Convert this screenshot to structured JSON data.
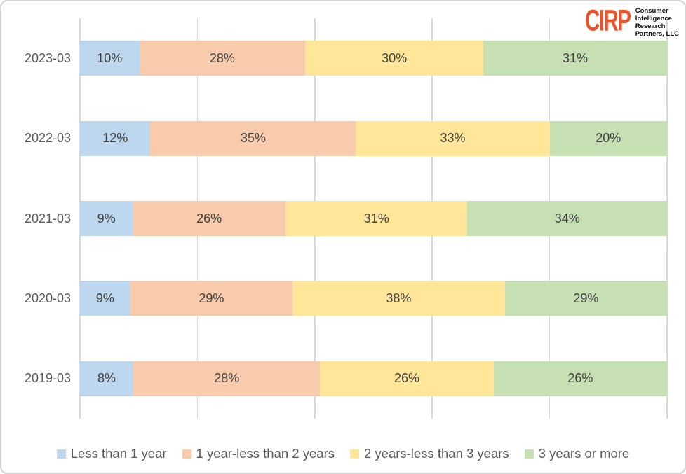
{
  "logo": {
    "wordmark": "CIRP",
    "lines": [
      "Consumer",
      "Intelligence",
      "Research",
      "Partners, LLC"
    ],
    "wordmark_color": "#e8532c"
  },
  "colors": {
    "gridline": "#d9d9d9",
    "frame_border": "#d5d5d5",
    "tick_label": "#595959",
    "data_label": "#404040"
  },
  "chart_data": {
    "type": "bar",
    "stacked": true,
    "orientation": "horizontal",
    "title": "",
    "xlabel": "",
    "ylabel": "",
    "xlim": [
      0,
      100
    ],
    "grid": true,
    "gridlines_percent": [
      0,
      20,
      40,
      60,
      80,
      100
    ],
    "value_suffix": "%",
    "legend_position": "bottom",
    "categories": [
      "2023-03",
      "2022-03",
      "2021-03",
      "2020-03",
      "2019-03"
    ],
    "series": [
      {
        "name": "Less than 1 year",
        "color": "#bdd7ee",
        "values": [
          10,
          12,
          9,
          9,
          8
        ]
      },
      {
        "name": "1 year-less than 2 years",
        "color": "#f8cbad",
        "values": [
          28,
          35,
          26,
          29,
          28
        ]
      },
      {
        "name": "2 years-less than 3 years",
        "color": "#ffe699",
        "values": [
          30,
          33,
          31,
          38,
          26
        ]
      },
      {
        "name": "3 years or more",
        "color": "#c6e0b4",
        "values": [
          31,
          20,
          34,
          29,
          26
        ]
      }
    ]
  }
}
